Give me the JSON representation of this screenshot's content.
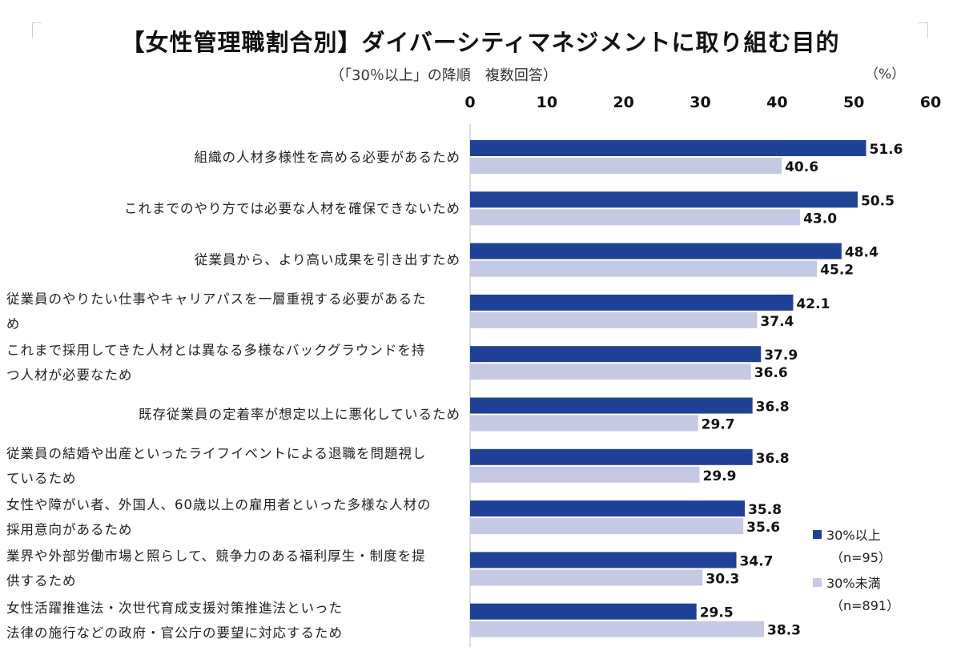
{
  "header": {
    "title": "【女性管理職割合別】ダイバーシティマネジメントに取り組む目的",
    "subtitle": "（「30％以上」の降順　複数回答）",
    "unit": "（%）"
  },
  "legend": {
    "series1_label": "30%以上",
    "series1_n": "（n=95）",
    "series2_label": "30%未満",
    "series2_n": "（n=891）"
  },
  "chart_data": {
    "type": "bar",
    "orientation": "horizontal",
    "xlim": [
      0,
      60
    ],
    "ticks": [
      "0",
      "10",
      "20",
      "30",
      "40",
      "50",
      "60"
    ],
    "categories": [
      "組織の人材多様性を高める必要があるため",
      "これまでのやり方では必要な人材を確保できないため",
      "従業員から、より高い成果を引き出すため",
      "従業員のやりたい仕事やキャリアパスを一層重視する必要があるため",
      "これまで採用してきた人材とは異なる多様なバックグラウンドを持つ人材が必要なため",
      "既存従業員の定着率が想定以上に悪化しているため",
      "従業員の結婚や出産といったライフイベントによる退職を問題視しているため",
      "女性や障がい者、外国人、60歳以上の雇用者といった多様な人材の採用意向があるため",
      "業界や外部労働市場と照らして、競争力のある福利厚生・制度を提供するため",
      "女性活躍推進法・次世代育成支援対策推進法といった法律の施行などの政府・官公庁の要望に対応するため"
    ],
    "category_lines": [
      [
        "組織の人材多様性を高める必要があるため"
      ],
      [
        "これまでのやり方では必要な人材を確保できないため"
      ],
      [
        "従業員から、より高い成果を引き出すため"
      ],
      [
        "従業員のやりたい仕事やキャリアパスを一層重視する必要があるた",
        "め"
      ],
      [
        "これまで採用してきた人材とは異なる多様なバックグラウンドを持",
        "つ人材が必要なため"
      ],
      [
        "既存従業員の定着率が想定以上に悪化しているため"
      ],
      [
        "従業員の結婚や出産といったライフイベントによる退職を問題視し",
        "ているため"
      ],
      [
        "女性や障がい者、外国人、60歳以上の雇用者といった多様な人材の",
        "採用意向があるため"
      ],
      [
        "業界や外部労働市場と照らして、競争力のある福利厚生・制度を提",
        "供するため"
      ],
      [
        "女性活躍推進法・次世代育成支援対策推進法といった",
        "法律の施行などの政府・官公庁の要望に対応するため"
      ]
    ],
    "series": [
      {
        "name": "30%以上",
        "color": "#1f4196",
        "values": [
          51.6,
          50.5,
          48.4,
          42.1,
          37.9,
          36.8,
          36.8,
          35.8,
          34.7,
          29.5
        ]
      },
      {
        "name": "30%未満",
        "color": "#c5c9e4",
        "values": [
          40.6,
          43.0,
          45.2,
          37.4,
          36.6,
          29.7,
          29.9,
          35.6,
          30.3,
          38.3
        ]
      }
    ]
  }
}
